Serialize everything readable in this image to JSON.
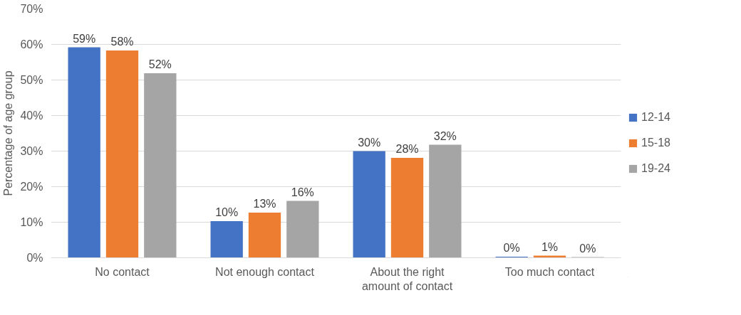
{
  "chart_data": {
    "type": "bar",
    "ylabel": "Percentage of age group",
    "categories": [
      "No contact",
      "Not enough contact",
      "About the right amount of contact",
      "Too much contact"
    ],
    "series": [
      {
        "name": "12-14",
        "color": "#4472c4",
        "values": [
          59.2,
          10.3,
          30.0,
          0.3
        ],
        "value_labels": [
          "59%",
          "10%",
          "30%",
          "0%"
        ]
      },
      {
        "name": "15-18",
        "color": "#ed7d31",
        "values": [
          58.3,
          12.7,
          28.1,
          0.6
        ],
        "value_labels": [
          "58%",
          "13%",
          "28%",
          "1%"
        ]
      },
      {
        "name": "19-24",
        "color": "#a5a5a5",
        "values": [
          51.9,
          16.0,
          31.8,
          0.2
        ],
        "value_labels": [
          "52%",
          "16%",
          "32%",
          "0%"
        ]
      }
    ],
    "ylim": [
      0,
      70
    ],
    "yticks": [
      {
        "value": 0,
        "label": "0%"
      },
      {
        "value": 10,
        "label": "10%"
      },
      {
        "value": 20,
        "label": "20%"
      },
      {
        "value": 30,
        "label": "30%"
      },
      {
        "value": 40,
        "label": "40%"
      },
      {
        "value": 50,
        "label": "50%"
      },
      {
        "value": 60,
        "label": "60%"
      },
      {
        "value": 70,
        "label": "70%"
      }
    ],
    "grid": "y",
    "legend": "right"
  }
}
